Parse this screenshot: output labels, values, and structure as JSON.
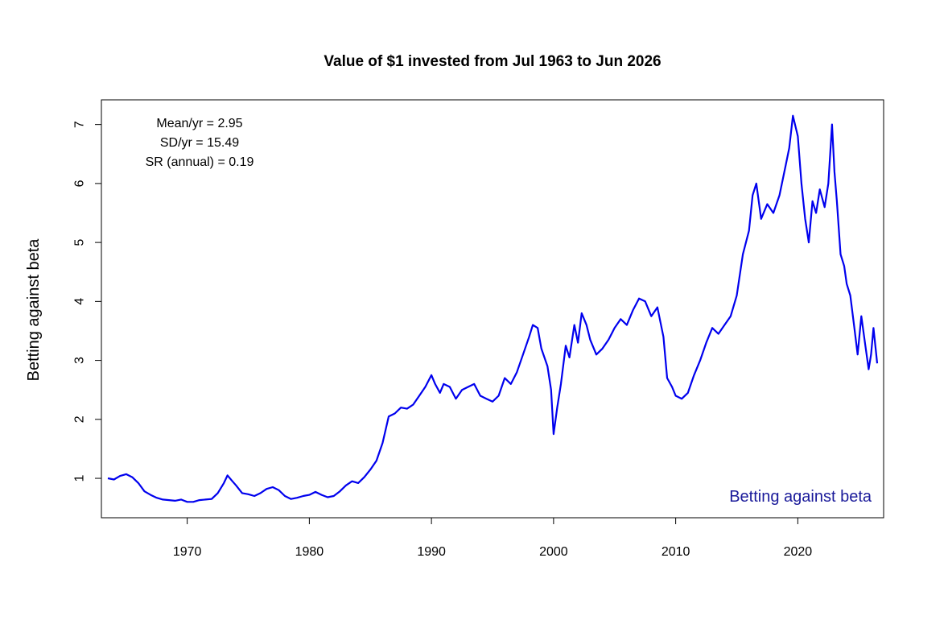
{
  "chart_data": {
    "type": "line",
    "title": "Value of $1 invested from Jul 1963 to Jun 2026",
    "xlabel": "",
    "ylabel": "Betting against beta",
    "xlim": [
      1963.5,
      2026.5
    ],
    "ylim": [
      0.55,
      7.2
    ],
    "x_ticks": [
      1970,
      1980,
      1990,
      2000,
      2010,
      2020
    ],
    "y_ticks": [
      1,
      2,
      3,
      4,
      5,
      6,
      7
    ],
    "grid": false,
    "stats": [
      "Mean/yr = 2.95",
      "SD/yr = 15.49",
      "SR (annual) = 0.19"
    ],
    "series_label": "Betting against beta",
    "series": [
      {
        "color": "#0000ee",
        "points": [
          [
            1963.5,
            1.0
          ],
          [
            1964.0,
            0.98
          ],
          [
            1964.5,
            1.04
          ],
          [
            1965.0,
            1.07
          ],
          [
            1965.5,
            1.02
          ],
          [
            1966.0,
            0.92
          ],
          [
            1966.5,
            0.78
          ],
          [
            1967.0,
            0.72
          ],
          [
            1967.5,
            0.67
          ],
          [
            1968.0,
            0.64
          ],
          [
            1968.5,
            0.63
          ],
          [
            1969.0,
            0.62
          ],
          [
            1969.5,
            0.64
          ],
          [
            1970.0,
            0.6
          ],
          [
            1970.5,
            0.6
          ],
          [
            1971.0,
            0.63
          ],
          [
            1971.5,
            0.64
          ],
          [
            1972.0,
            0.65
          ],
          [
            1972.5,
            0.75
          ],
          [
            1973.0,
            0.92
          ],
          [
            1973.3,
            1.05
          ],
          [
            1973.7,
            0.95
          ],
          [
            1974.0,
            0.88
          ],
          [
            1974.5,
            0.75
          ],
          [
            1975.0,
            0.73
          ],
          [
            1975.5,
            0.7
          ],
          [
            1976.0,
            0.75
          ],
          [
            1976.5,
            0.82
          ],
          [
            1977.0,
            0.85
          ],
          [
            1977.5,
            0.8
          ],
          [
            1978.0,
            0.7
          ],
          [
            1978.5,
            0.65
          ],
          [
            1979.0,
            0.67
          ],
          [
            1979.5,
            0.7
          ],
          [
            1980.0,
            0.72
          ],
          [
            1980.5,
            0.77
          ],
          [
            1981.0,
            0.72
          ],
          [
            1981.5,
            0.68
          ],
          [
            1982.0,
            0.7
          ],
          [
            1982.5,
            0.78
          ],
          [
            1983.0,
            0.88
          ],
          [
            1983.5,
            0.95
          ],
          [
            1984.0,
            0.92
          ],
          [
            1984.5,
            1.02
          ],
          [
            1985.0,
            1.15
          ],
          [
            1985.5,
            1.3
          ],
          [
            1986.0,
            1.6
          ],
          [
            1986.5,
            2.05
          ],
          [
            1987.0,
            2.1
          ],
          [
            1987.5,
            2.2
          ],
          [
            1988.0,
            2.18
          ],
          [
            1988.5,
            2.25
          ],
          [
            1989.0,
            2.4
          ],
          [
            1989.5,
            2.55
          ],
          [
            1990.0,
            2.75
          ],
          [
            1990.3,
            2.6
          ],
          [
            1990.7,
            2.45
          ],
          [
            1991.0,
            2.6
          ],
          [
            1991.5,
            2.55
          ],
          [
            1992.0,
            2.35
          ],
          [
            1992.5,
            2.5
          ],
          [
            1993.0,
            2.55
          ],
          [
            1993.5,
            2.6
          ],
          [
            1994.0,
            2.4
          ],
          [
            1994.5,
            2.35
          ],
          [
            1995.0,
            2.3
          ],
          [
            1995.5,
            2.4
          ],
          [
            1996.0,
            2.7
          ],
          [
            1996.5,
            2.6
          ],
          [
            1997.0,
            2.8
          ],
          [
            1997.5,
            3.1
          ],
          [
            1998.0,
            3.4
          ],
          [
            1998.3,
            3.6
          ],
          [
            1998.7,
            3.55
          ],
          [
            1999.0,
            3.2
          ],
          [
            1999.5,
            2.9
          ],
          [
            1999.8,
            2.5
          ],
          [
            2000.0,
            1.75
          ],
          [
            2000.3,
            2.2
          ],
          [
            2000.6,
            2.6
          ],
          [
            2001.0,
            3.25
          ],
          [
            2001.3,
            3.05
          ],
          [
            2001.7,
            3.6
          ],
          [
            2002.0,
            3.3
          ],
          [
            2002.3,
            3.8
          ],
          [
            2002.7,
            3.6
          ],
          [
            2003.0,
            3.35
          ],
          [
            2003.5,
            3.1
          ],
          [
            2004.0,
            3.2
          ],
          [
            2004.5,
            3.35
          ],
          [
            2005.0,
            3.55
          ],
          [
            2005.5,
            3.7
          ],
          [
            2006.0,
            3.6
          ],
          [
            2006.5,
            3.85
          ],
          [
            2007.0,
            4.05
          ],
          [
            2007.5,
            4.0
          ],
          [
            2008.0,
            3.75
          ],
          [
            2008.5,
            3.9
          ],
          [
            2009.0,
            3.4
          ],
          [
            2009.3,
            2.7
          ],
          [
            2009.7,
            2.55
          ],
          [
            2010.0,
            2.4
          ],
          [
            2010.5,
            2.35
          ],
          [
            2011.0,
            2.45
          ],
          [
            2011.5,
            2.75
          ],
          [
            2012.0,
            3.0
          ],
          [
            2012.5,
            3.3
          ],
          [
            2013.0,
            3.55
          ],
          [
            2013.5,
            3.45
          ],
          [
            2014.0,
            3.6
          ],
          [
            2014.5,
            3.75
          ],
          [
            2015.0,
            4.1
          ],
          [
            2015.5,
            4.8
          ],
          [
            2016.0,
            5.2
          ],
          [
            2016.3,
            5.8
          ],
          [
            2016.6,
            6.0
          ],
          [
            2017.0,
            5.4
          ],
          [
            2017.5,
            5.65
          ],
          [
            2018.0,
            5.5
          ],
          [
            2018.5,
            5.8
          ],
          [
            2019.0,
            6.3
          ],
          [
            2019.3,
            6.6
          ],
          [
            2019.6,
            7.15
          ],
          [
            2020.0,
            6.8
          ],
          [
            2020.3,
            6.0
          ],
          [
            2020.6,
            5.4
          ],
          [
            2020.9,
            5.0
          ],
          [
            2021.2,
            5.7
          ],
          [
            2021.5,
            5.5
          ],
          [
            2021.8,
            5.9
          ],
          [
            2022.2,
            5.6
          ],
          [
            2022.5,
            6.0
          ],
          [
            2022.8,
            7.0
          ],
          [
            2023.0,
            6.2
          ],
          [
            2023.2,
            5.7
          ],
          [
            2023.5,
            4.8
          ],
          [
            2023.8,
            4.6
          ],
          [
            2024.0,
            4.3
          ],
          [
            2024.3,
            4.1
          ],
          [
            2024.6,
            3.6
          ],
          [
            2024.9,
            3.1
          ],
          [
            2025.2,
            3.75
          ],
          [
            2025.5,
            3.3
          ],
          [
            2025.8,
            2.85
          ],
          [
            2026.0,
            3.1
          ],
          [
            2026.2,
            3.55
          ],
          [
            2026.5,
            2.95
          ]
        ]
      }
    ]
  }
}
